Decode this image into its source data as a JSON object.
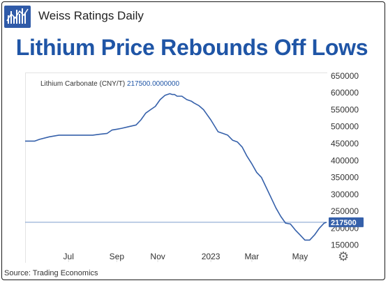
{
  "header": {
    "brand": "Weiss Ratings Daily",
    "headline": "Lithium Price Rebounds Off Lows"
  },
  "source": "Source: Trading Economics",
  "colors": {
    "accent": "#1f55a6",
    "line": "#3560aa",
    "badge": "#3560aa"
  },
  "icons": {
    "logo": "bar-chart-logo-icon",
    "settings": "gear-icon"
  },
  "chart_data": {
    "type": "line",
    "title": "",
    "legend": {
      "label": "Lithium Carbonate (CNY/T)",
      "value": "217500.0000000",
      "placement": "top-left"
    },
    "x_tick_labels": [
      "Jul",
      "Sep",
      "Nov",
      "2023",
      "Mar",
      "May"
    ],
    "x_tick_positions": [
      1.8,
      3.8,
      5.5,
      7.7,
      9.4,
      11.4
    ],
    "xlim": [
      0,
      12.5
    ],
    "y_ticks": [
      150000,
      200000,
      250000,
      300000,
      350000,
      400000,
      450000,
      500000,
      550000,
      600000,
      650000
    ],
    "y_tick_labels": [
      "150000",
      "200000",
      "250000",
      "300000",
      "350000",
      "400000",
      "450000",
      "500000",
      "550000",
      "600000",
      "650000"
    ],
    "ylim": [
      100000,
      660000
    ],
    "last_value": 217500,
    "last_value_label": "217500",
    "grid": false,
    "series": [
      {
        "x": [
          0,
          0.4,
          0.6,
          1.0,
          1.4,
          2.0,
          2.8,
          3.1,
          3.4,
          3.6,
          3.8,
          4.0,
          4.3,
          4.6,
          4.8,
          5.0,
          5.2,
          5.4,
          5.6,
          5.8,
          6.0,
          6.1,
          6.2,
          6.3,
          6.5,
          6.7,
          6.9,
          7.0,
          7.2,
          7.4,
          7.5,
          7.7,
          8.0,
          8.2,
          8.4,
          8.6,
          8.8,
          9.0,
          9.2,
          9.4,
          9.6,
          9.8,
          10.0,
          10.2,
          10.4,
          10.6,
          10.8,
          11.0,
          11.2,
          11.4,
          11.6,
          11.8,
          12.0,
          12.2,
          12.4,
          12.5
        ],
        "y": [
          457500,
          457500,
          462500,
          470000,
          475000,
          475000,
          475000,
          477500,
          480000,
          490000,
          492500,
          495000,
          500000,
          505000,
          520000,
          540000,
          550000,
          560000,
          580000,
          592500,
          597500,
          595000,
          595000,
          590000,
          590000,
          580000,
          575000,
          570000,
          562500,
          550000,
          540000,
          520000,
          485000,
          480000,
          475000,
          460000,
          455000,
          440000,
          412500,
          390000,
          365000,
          350000,
          320000,
          290000,
          260000,
          235000,
          215000,
          212500,
          195000,
          180000,
          165000,
          165000,
          180000,
          200000,
          215000,
          217500
        ]
      }
    ]
  }
}
